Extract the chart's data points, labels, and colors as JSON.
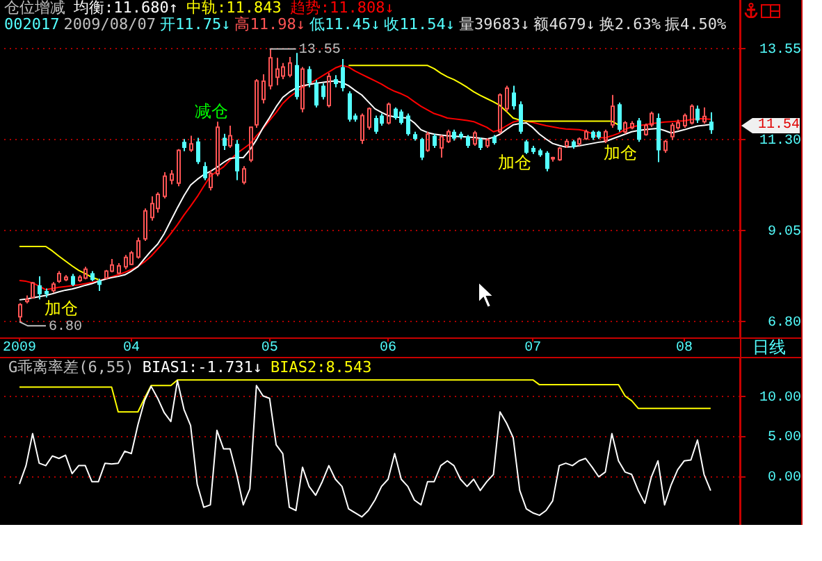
{
  "chart_data": [
    {
      "type": "candlestick",
      "title": "仓位增减",
      "subtitle": "002017 2009/08/07 开11.75↓ 高11.98↓ 低11.45↓ 收11.54↓ 量39683↓ 额4679↓ 换2.63% 振4.50%",
      "categories": [
        "2009",
        null,
        null,
        null,
        null,
        null,
        null,
        null,
        null,
        null,
        null,
        null,
        null,
        null,
        null,
        null,
        null,
        "04",
        null,
        null,
        null,
        null,
        null,
        null,
        null,
        null,
        null,
        null,
        null,
        null,
        null,
        null,
        null,
        null,
        null,
        null,
        null,
        null,
        "05",
        null,
        null,
        null,
        null,
        null,
        null,
        null,
        null,
        null,
        null,
        null,
        null,
        null,
        null,
        null,
        null,
        null,
        "06",
        null,
        null,
        null,
        null,
        null,
        null,
        null,
        null,
        null,
        null,
        null,
        null,
        null,
        null,
        null,
        null,
        null,
        null,
        null,
        null,
        null,
        "07",
        null,
        null,
        null,
        null,
        null,
        null,
        null,
        null,
        null,
        null,
        null,
        null,
        null,
        null,
        null,
        null,
        null,
        null,
        null,
        null,
        null,
        null,
        "08",
        null,
        null,
        null,
        null
      ],
      "ohlc": [
        [
          6.92,
          7.26,
          6.8,
          7.22
        ],
        [
          7.3,
          7.45,
          7.25,
          7.35
        ],
        [
          7.4,
          7.78,
          7.38,
          7.76
        ],
        [
          7.7,
          7.92,
          7.35,
          7.48
        ],
        [
          7.56,
          7.62,
          7.4,
          7.48
        ],
        [
          7.57,
          7.78,
          7.52,
          7.73
        ],
        [
          7.8,
          8.05,
          7.76,
          7.99
        ],
        [
          7.84,
          7.95,
          7.8,
          7.9
        ],
        [
          7.93,
          7.98,
          7.68,
          7.71
        ],
        [
          7.82,
          7.95,
          7.78,
          7.9
        ],
        [
          7.88,
          8.16,
          7.85,
          8.1
        ],
        [
          8.0,
          8.05,
          7.8,
          7.83
        ],
        [
          7.82,
          7.86,
          7.56,
          7.71
        ],
        [
          7.88,
          8.08,
          7.85,
          8.05
        ],
        [
          8.05,
          8.35,
          8.02,
          8.2
        ],
        [
          8.0,
          8.25,
          7.98,
          8.18
        ],
        [
          8.16,
          8.45,
          8.1,
          8.39
        ],
        [
          8.22,
          8.55,
          8.2,
          8.5
        ],
        [
          8.4,
          8.88,
          8.36,
          8.8
        ],
        [
          8.85,
          9.6,
          8.8,
          9.54
        ],
        [
          9.38,
          9.9,
          9.3,
          9.72
        ],
        [
          9.6,
          10.0,
          9.5,
          9.95
        ],
        [
          9.9,
          10.5,
          9.85,
          10.4
        ],
        [
          10.3,
          10.55,
          10.2,
          10.45
        ],
        [
          10.23,
          11.07,
          10.15,
          11.04
        ],
        [
          11.25,
          11.32,
          11.02,
          11.1
        ],
        [
          11.05,
          11.4,
          11.0,
          11.2
        ],
        [
          11.26,
          11.35,
          10.7,
          10.75
        ],
        [
          10.65,
          10.75,
          10.3,
          10.35
        ],
        [
          10.12,
          10.55,
          10.05,
          10.46
        ],
        [
          10.46,
          11.75,
          10.4,
          11.61
        ],
        [
          11.35,
          11.45,
          11.05,
          11.15
        ],
        [
          11.15,
          11.65,
          11.1,
          11.4
        ],
        [
          11.2,
          11.3,
          10.3,
          10.52
        ],
        [
          10.25,
          10.65,
          10.2,
          10.58
        ],
        [
          10.8,
          11.62,
          10.75,
          11.61
        ],
        [
          11.67,
          12.8,
          11.6,
          12.76
        ],
        [
          12.3,
          12.92,
          12.2,
          12.75
        ],
        [
          12.64,
          13.55,
          12.55,
          13.33
        ],
        [
          12.85,
          13.33,
          12.65,
          13.05
        ],
        [
          12.88,
          13.2,
          12.8,
          13.1
        ],
        [
          12.9,
          13.35,
          12.85,
          13.2
        ],
        [
          13.15,
          13.45,
          12.3,
          12.36
        ],
        [
          12.07,
          13.1,
          11.98,
          13.05
        ],
        [
          13.05,
          13.12,
          12.6,
          12.7
        ],
        [
          12.7,
          12.78,
          12.1,
          12.15
        ],
        [
          12.64,
          12.7,
          12.3,
          12.36
        ],
        [
          12.15,
          12.95,
          12.1,
          12.87
        ],
        [
          12.8,
          12.9,
          12.6,
          12.68
        ],
        [
          13.1,
          13.3,
          12.5,
          12.58
        ],
        [
          12.45,
          12.5,
          11.75,
          11.8
        ],
        [
          11.9,
          11.95,
          11.75,
          11.8
        ],
        [
          11.29,
          11.95,
          11.2,
          11.9
        ],
        [
          11.61,
          12.1,
          11.55,
          12.07
        ],
        [
          11.84,
          11.9,
          11.45,
          11.5
        ],
        [
          11.9,
          11.95,
          11.65,
          11.7
        ],
        [
          11.72,
          12.22,
          11.68,
          12.18
        ],
        [
          12.07,
          12.1,
          11.8,
          11.84
        ],
        [
          12.0,
          12.05,
          11.68,
          11.72
        ],
        [
          11.9,
          11.95,
          11.4,
          11.44
        ],
        [
          11.44,
          11.5,
          11.28,
          11.32
        ],
        [
          11.32,
          11.35,
          10.8,
          10.86
        ],
        [
          11.04,
          11.5,
          11.0,
          11.44
        ],
        [
          11.4,
          11.45,
          11.1,
          11.15
        ],
        [
          11.1,
          11.42,
          10.86,
          11.38
        ],
        [
          11.26,
          11.55,
          11.22,
          11.5
        ],
        [
          11.5,
          11.55,
          11.28,
          11.33
        ],
        [
          11.45,
          11.5,
          11.32,
          11.36
        ],
        [
          11.38,
          11.42,
          11.1,
          11.15
        ],
        [
          11.2,
          11.52,
          11.15,
          11.47
        ],
        [
          11.32,
          11.36,
          11.05,
          11.1
        ],
        [
          11.15,
          11.34,
          11.1,
          11.3
        ],
        [
          11.38,
          11.42,
          11.18,
          11.22
        ],
        [
          11.5,
          12.45,
          11.45,
          12.41
        ],
        [
          12.07,
          12.64,
          12.0,
          12.58
        ],
        [
          12.47,
          12.64,
          12.05,
          12.13
        ],
        [
          12.18,
          12.25,
          11.45,
          11.5
        ],
        [
          11.26,
          11.3,
          10.95,
          10.98
        ],
        [
          11.1,
          11.15,
          10.95,
          11.0
        ],
        [
          11.04,
          11.08,
          10.88,
          10.92
        ],
        [
          10.98,
          11.02,
          10.52,
          10.58
        ],
        [
          10.83,
          10.88,
          10.76,
          10.86
        ],
        [
          10.81,
          11.12,
          10.78,
          11.09
        ],
        [
          11.15,
          11.32,
          11.1,
          11.26
        ],
        [
          11.26,
          11.3,
          11.08,
          11.12
        ],
        [
          11.2,
          11.36,
          11.15,
          11.32
        ],
        [
          11.33,
          11.55,
          11.3,
          11.5
        ],
        [
          11.5,
          11.53,
          11.3,
          11.35
        ],
        [
          11.5,
          11.52,
          11.32,
          11.36
        ],
        [
          11.28,
          11.55,
          11.22,
          11.5
        ],
        [
          11.67,
          12.41,
          11.6,
          12.13
        ],
        [
          12.18,
          12.22,
          11.5,
          11.55
        ],
        [
          11.5,
          11.76,
          11.45,
          11.72
        ],
        [
          11.6,
          11.76,
          11.56,
          11.7
        ],
        [
          11.78,
          11.84,
          11.25,
          11.3
        ],
        [
          11.43,
          11.7,
          11.4,
          11.66
        ],
        [
          11.67,
          12.0,
          11.62,
          11.95
        ],
        [
          11.84,
          11.95,
          10.75,
          11.04
        ],
        [
          11.04,
          11.3,
          10.98,
          11.26
        ],
        [
          11.38,
          11.72,
          11.3,
          11.66
        ],
        [
          11.6,
          11.8,
          11.55,
          11.72
        ],
        [
          11.65,
          11.95,
          11.6,
          11.9
        ],
        [
          11.72,
          12.18,
          11.68,
          12.13
        ],
        [
          12.07,
          12.15,
          11.72,
          11.78
        ],
        [
          11.75,
          12.1,
          11.7,
          11.88
        ],
        [
          11.75,
          11.98,
          11.45,
          11.54
        ]
      ],
      "series": [
        {
          "type": "line",
          "name": "均衡:11.680↑",
          "color": "#ffffff",
          "values": [
            7.34,
            7.36,
            7.39,
            7.42,
            7.45,
            7.49,
            7.54,
            7.58,
            7.61,
            7.65,
            7.7,
            7.74,
            7.8,
            7.85,
            7.89,
            7.92,
            7.96,
            8.05,
            8.16,
            8.36,
            8.55,
            8.72,
            8.98,
            9.3,
            9.62,
            9.92,
            10.18,
            10.32,
            10.44,
            10.52,
            10.62,
            10.74,
            10.84,
            10.86,
            10.86,
            11.05,
            11.3,
            11.6,
            11.85,
            12.12,
            12.35,
            12.48,
            12.58,
            12.64,
            12.67,
            12.7,
            12.72,
            12.74,
            12.76,
            12.72,
            12.64,
            12.52,
            12.41,
            12.24,
            12.07,
            11.98,
            11.9,
            11.87,
            11.85,
            11.84,
            11.72,
            11.55,
            11.48,
            11.44,
            11.42,
            11.4,
            11.39,
            11.38,
            11.37,
            11.36,
            11.34,
            11.32,
            11.36,
            11.44,
            11.56,
            11.67,
            11.7,
            11.72,
            11.6,
            11.44,
            11.32,
            11.21,
            11.16,
            11.12,
            11.13,
            11.15,
            11.18,
            11.21,
            11.24,
            11.26,
            11.32,
            11.38,
            11.44,
            11.5,
            11.53,
            11.55,
            11.57,
            11.58,
            11.53,
            11.47,
            11.51,
            11.55,
            11.6,
            11.64,
            11.66,
            11.68
          ]
        },
        {
          "type": "line",
          "name": "中轨:11.843",
          "color": "#ffff00",
          "values": [
            8.66,
            8.66,
            8.66,
            8.66,
            8.66,
            8.55,
            8.42,
            8.3,
            8.18,
            8.07,
            7.99,
            7.9,
            7.84,
            null,
            null,
            null,
            null,
            null,
            null,
            null,
            null,
            null,
            null,
            null,
            null,
            null,
            null,
            null,
            null,
            null,
            null,
            null,
            null,
            null,
            null,
            null,
            null,
            null,
            null,
            null,
            null,
            null,
            null,
            null,
            null,
            null,
            null,
            null,
            null,
            null,
            13.14,
            13.14,
            13.14,
            13.14,
            13.14,
            13.14,
            13.14,
            13.14,
            13.14,
            13.14,
            13.14,
            13.14,
            13.14,
            13.06,
            12.95,
            12.86,
            12.79,
            12.7,
            12.6,
            12.49,
            12.4,
            12.32,
            12.24,
            12.15,
            12.0,
            11.84,
            11.79,
            11.76,
            11.76,
            11.76,
            11.76,
            11.76,
            11.76,
            11.76,
            11.76,
            11.76,
            11.76,
            11.76,
            11.76,
            11.76,
            11.76,
            11.67,
            null,
            null,
            null,
            null,
            null,
            null,
            null,
            null,
            null,
            null,
            null,
            null,
            null,
            null
          ]
        },
        {
          "type": "line",
          "name": "趋势:11.808↓",
          "color": "#ff0000",
          "values": [
            7.82,
            7.8,
            7.76,
            7.68,
            7.59,
            7.62,
            7.65,
            7.67,
            7.69,
            7.71,
            7.74,
            7.77,
            7.81,
            7.86,
            7.91,
            7.96,
            8.02,
            8.09,
            8.17,
            8.28,
            8.42,
            8.6,
            8.78,
            8.98,
            9.2,
            9.44,
            9.66,
            9.89,
            10.15,
            10.4,
            10.52,
            10.63,
            10.8,
            10.96,
            11.08,
            11.2,
            11.4,
            11.58,
            11.78,
            11.98,
            12.2,
            12.36,
            12.48,
            12.6,
            12.68,
            12.78,
            12.88,
            12.98,
            13.08,
            13.14,
            13.1,
            13.0,
            12.92,
            12.84,
            12.76,
            12.68,
            12.58,
            12.5,
            12.44,
            12.36,
            12.24,
            12.13,
            12.04,
            11.95,
            11.9,
            11.84,
            11.82,
            11.8,
            11.78,
            11.75,
            11.68,
            11.61,
            11.5,
            11.55,
            11.65,
            11.74,
            11.78,
            11.76,
            11.73,
            11.69,
            11.65,
            11.62,
            11.59,
            11.57,
            11.56,
            11.55,
            11.52,
            11.45,
            11.36,
            11.35,
            11.4,
            11.46,
            11.56,
            11.62,
            11.65,
            11.67,
            11.7,
            11.72,
            11.74,
            11.75,
            11.76,
            11.77,
            11.8,
            11.82,
            11.82,
            11.808
          ]
        }
      ],
      "ylim": [
        6.41,
        14.76
      ],
      "yticks": [
        {
          "value": 6.8,
          "label": "6.80"
        },
        9.05,
        {
          "value": 11.3,
          "label": "11.30"
        },
        13.55
      ],
      "grid": "y",
      "legend": "top left",
      "annotations": [
        {
          "text": "13.55",
          "x": "05",
          "y": 13.55
        },
        {
          "text": "6.80",
          "x": "2009",
          "y": 6.8
        },
        "加仓",
        "减仓",
        "加仓",
        "加仓",
        "11.54",
        "日线"
      ]
    },
    {
      "type": "line",
      "title": "G乖离率差(6,55)",
      "categories": [
        "2009",
        null,
        null,
        null,
        null,
        null,
        null,
        null,
        null,
        null,
        null,
        null,
        null,
        null,
        null,
        null,
        null,
        "04",
        null,
        null,
        null,
        null,
        null,
        null,
        null,
        null,
        null,
        null,
        null,
        null,
        null,
        null,
        null,
        null,
        null,
        null,
        null,
        null,
        "05",
        null,
        null,
        null,
        null,
        null,
        null,
        null,
        null,
        null,
        null,
        null,
        null,
        null,
        null,
        null,
        null,
        null,
        "06",
        null,
        null,
        null,
        null,
        null,
        null,
        null,
        null,
        null,
        null,
        null,
        null,
        null,
        null,
        null,
        null,
        null,
        null,
        null,
        null,
        null,
        "07",
        null,
        null,
        null,
        null,
        null,
        null,
        null,
        null,
        null,
        null,
        null,
        null,
        null,
        null,
        null,
        null,
        null,
        null,
        null,
        null,
        null,
        null,
        "08",
        null,
        null,
        null,
        null
      ],
      "series": [
        {
          "name": "BIAS1:-1.731↓",
          "color": "#ffffff",
          "values": [
            -0.9,
            1.4,
            5.4,
            1.7,
            1.4,
            2.6,
            2.3,
            2.7,
            0.4,
            1.4,
            1.4,
            -0.6,
            -0.6,
            1.7,
            1.6,
            1.7,
            3.2,
            2.9,
            6.5,
            9.5,
            11.3,
            9.8,
            8.0,
            6.9,
            12.0,
            8.4,
            6.4,
            -0.9,
            -3.8,
            -3.5,
            5.8,
            3.5,
            3.5,
            0.3,
            -3.5,
            -1.5,
            11.4,
            10.1,
            9.8,
            4.0,
            2.9,
            -3.8,
            -4.2,
            1.2,
            -1.2,
            -2.3,
            -0.6,
            1.4,
            -0.3,
            -1.2,
            -4.0,
            -4.5,
            -5.0,
            -4.2,
            -2.9,
            -1.2,
            -0.3,
            2.9,
            -0.3,
            -1.2,
            -2.9,
            -3.5,
            -0.6,
            -0.6,
            1.4,
            2.0,
            1.4,
            -0.3,
            -1.2,
            -0.3,
            -1.7,
            -0.6,
            0.3,
            8.1,
            6.7,
            4.9,
            -1.7,
            -4.0,
            -4.5,
            -4.8,
            -4.2,
            -3.0,
            1.4,
            1.7,
            1.4,
            2.0,
            2.3,
            1.2,
            0.0,
            0.6,
            5.4,
            2.0,
            0.6,
            0.3,
            -1.7,
            -3.3,
            0.0,
            2.0,
            -3.5,
            -1.0,
            0.9,
            2.0,
            2.1,
            4.6,
            0.3,
            -1.731
          ]
        },
        {
          "name": "BIAS2:8.543",
          "color": "#ffff00",
          "values": [
            11.2,
            11.2,
            11.2,
            11.2,
            11.2,
            11.2,
            11.2,
            11.2,
            11.2,
            11.2,
            11.2,
            11.2,
            11.2,
            11.2,
            11.2,
            8.1,
            8.1,
            8.1,
            8.1,
            9.8,
            11.4,
            11.4,
            11.4,
            11.4,
            12.1,
            12.1,
            12.1,
            12.1,
            12.1,
            12.1,
            12.1,
            12.1,
            12.1,
            12.1,
            12.1,
            12.1,
            12.1,
            12.1,
            12.1,
            12.1,
            12.1,
            12.1,
            12.1,
            12.1,
            12.1,
            12.1,
            12.1,
            12.1,
            12.1,
            12.1,
            12.1,
            12.1,
            12.1,
            12.1,
            12.1,
            12.1,
            12.1,
            12.1,
            12.1,
            12.1,
            12.1,
            12.1,
            12.1,
            12.1,
            12.1,
            12.1,
            12.1,
            12.1,
            12.1,
            12.1,
            12.1,
            12.1,
            12.1,
            12.1,
            12.1,
            12.1,
            12.1,
            12.1,
            12.1,
            11.5,
            11.5,
            11.5,
            11.5,
            11.5,
            11.5,
            11.5,
            11.5,
            11.5,
            11.5,
            11.5,
            11.5,
            11.5,
            10.1,
            9.5,
            8.543,
            8.543,
            8.543,
            8.543,
            8.543,
            8.543,
            8.543,
            8.543,
            8.543,
            8.543,
            8.543,
            8.543
          ]
        }
      ],
      "ylim": [
        -6,
        14.8
      ],
      "yticks": [
        {
          "value": 0,
          "label": "0.00"
        },
        {
          "value": 5,
          "label": "5.00"
        },
        {
          "value": 10,
          "label": "10.00"
        }
      ],
      "grid": "y",
      "legend": "top left",
      "tick_labels": "y"
    }
  ]
}
